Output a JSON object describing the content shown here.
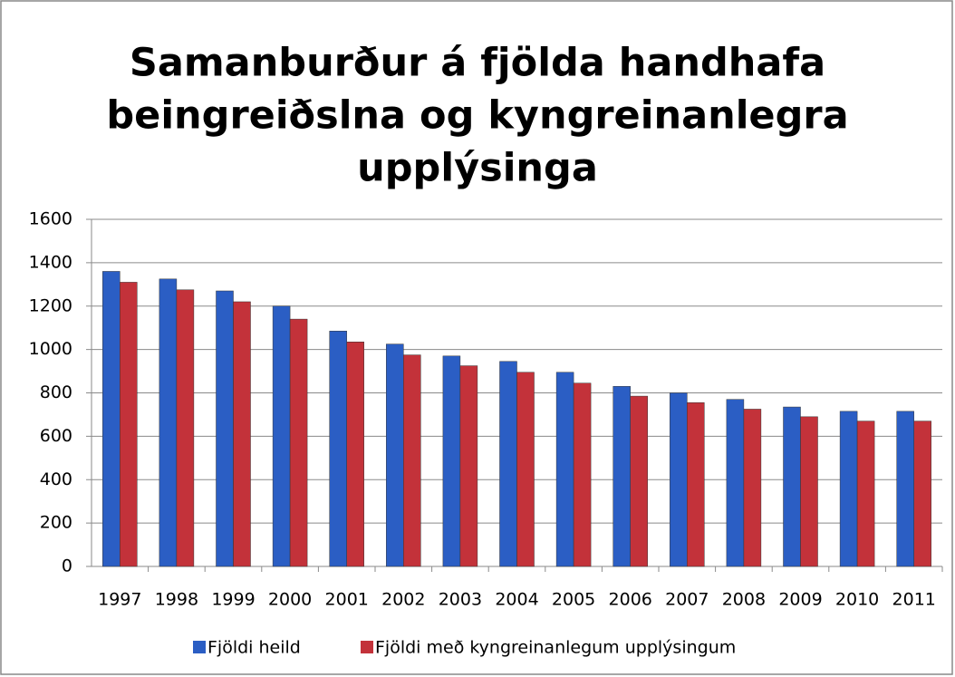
{
  "chart_data": {
    "type": "bar",
    "title": [
      "Samanburður á fjölda handhafa",
      "beingreiðslna og kyngreinanlegra",
      "upplýsinga"
    ],
    "categories": [
      "1997",
      "1998",
      "1999",
      "2000",
      "2001",
      "2002",
      "2003",
      "2004",
      "2005",
      "2006",
      "2007",
      "2008",
      "2009",
      "2010",
      "2011"
    ],
    "series": [
      {
        "name": "Fjöldi heild",
        "color": "#2b5ec4",
        "values": [
          1360,
          1325,
          1270,
          1200,
          1085,
          1025,
          970,
          945,
          895,
          830,
          800,
          770,
          735,
          715,
          715
        ]
      },
      {
        "name": "Fjöldi með kyngreinanlegum upplýsingum",
        "color": "#c3323a",
        "values": [
          1310,
          1275,
          1220,
          1140,
          1035,
          975,
          925,
          895,
          845,
          785,
          755,
          725,
          690,
          670,
          670
        ]
      }
    ],
    "ylim": [
      0,
      1600
    ],
    "yticks": [
      0,
      200,
      400,
      600,
      800,
      1000,
      1200,
      1400,
      1600
    ],
    "grid": true,
    "legend": "bottom"
  }
}
